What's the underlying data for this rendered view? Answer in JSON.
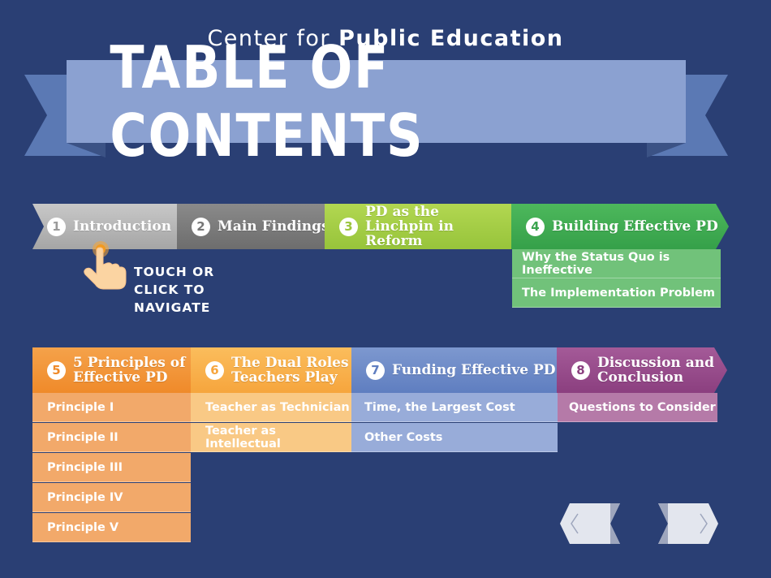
{
  "header": {
    "org_prefix": "Center for ",
    "org_bold": "Public Education",
    "title": "TABLE OF CONTENTS"
  },
  "instruction": "TOUCH OR\nCLICK TO\nNAVIGATE",
  "sections": [
    {
      "num": "1",
      "title": "Introduction",
      "color": "#b5b5b5"
    },
    {
      "num": "2",
      "title": "Main Findings",
      "color": "#7b7b7b"
    },
    {
      "num": "3",
      "title": "PD as the Linchpin in Reform",
      "color": "#a3cd45"
    },
    {
      "num": "4",
      "title": "Building Effective PD",
      "color": "#3faa51",
      "items": [
        "Why the Status Quo is Ineffective",
        "The Implementation Problem"
      ]
    },
    {
      "num": "5",
      "title": "5 Principles of Effective PD",
      "color": "#f08f2f",
      "items": [
        "Principle I",
        "Principle II",
        "Principle III",
        "Principle IV",
        "Principle V"
      ]
    },
    {
      "num": "6",
      "title": "The Dual Roles Teachers Play",
      "color": "#f7ac45",
      "items": [
        "Teacher as Technician",
        "Teacher as Intellectual"
      ]
    },
    {
      "num": "7",
      "title": "Funding Effective PD",
      "color": "#6784c4",
      "items": [
        "Time, the Largest Cost",
        "Other Costs"
      ]
    },
    {
      "num": "8",
      "title": "Discussion and Conclusion",
      "color": "#934687",
      "items": [
        "Questions to Consider"
      ]
    }
  ],
  "nav": {
    "prev_icon": "chevron-left-icon",
    "next_icon": "chevron-right-icon"
  }
}
